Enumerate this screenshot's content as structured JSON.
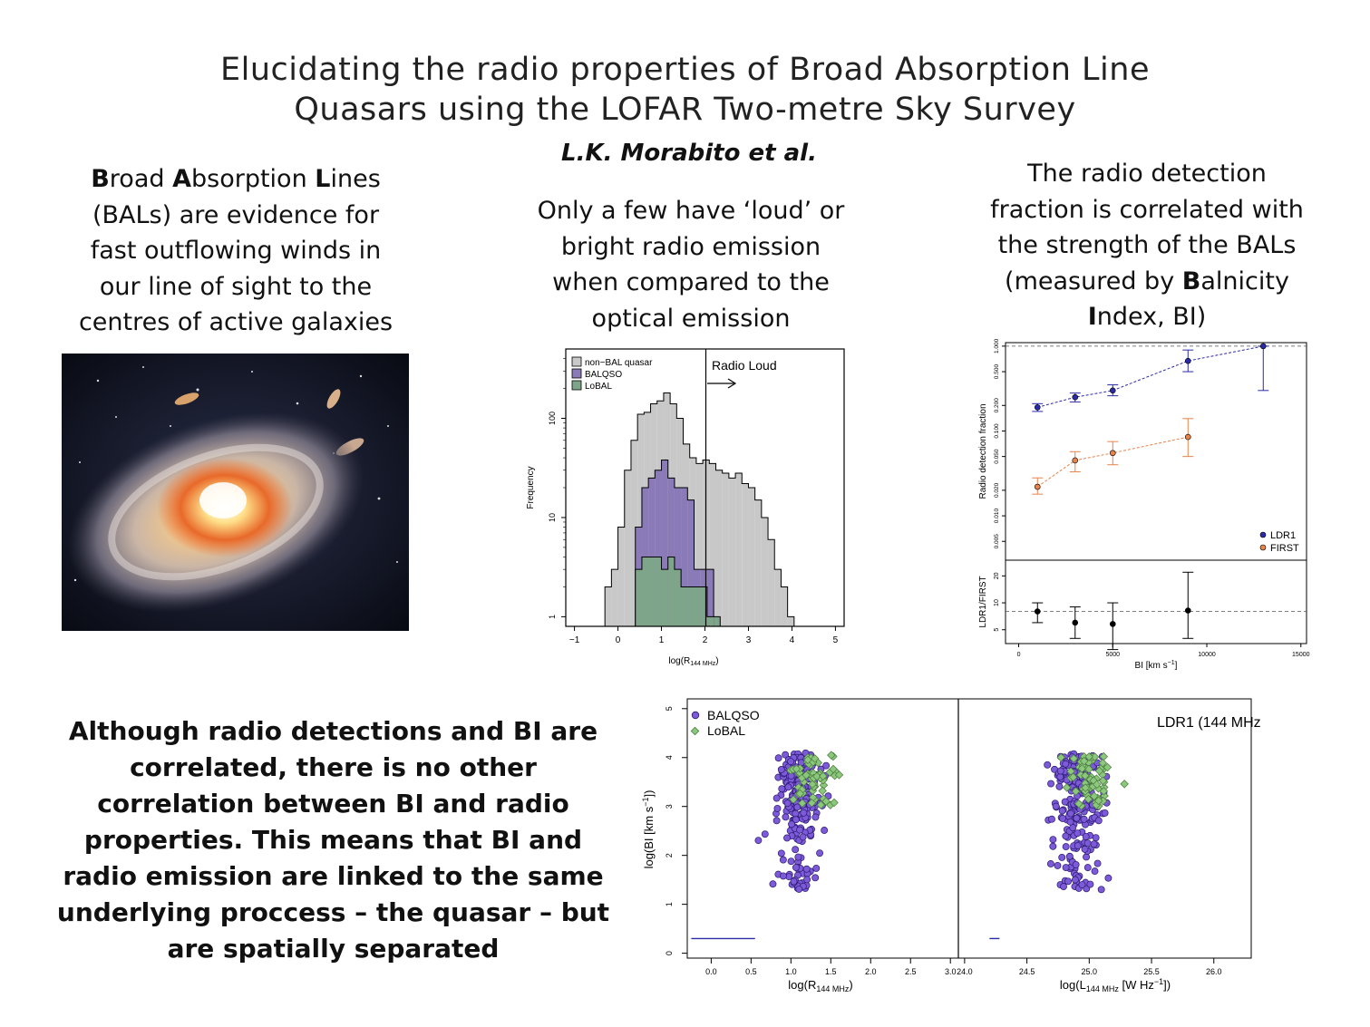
{
  "header": {
    "title_line1": "Elucidating the radio properties of Broad Absorption Line",
    "title_line2": "Quasars using the LOFAR Two-metre Sky Survey",
    "author": "L.K. Morabito et al."
  },
  "left_column": {
    "line1_b1": "B",
    "line1_t1": "road ",
    "line1_b2": "A",
    "line1_t2": "bsorption ",
    "line1_b3": "L",
    "line1_t3": "ines",
    "line2": "(BALs) are evidence for",
    "line3": "fast outflowing winds in",
    "line4": "our line of sight to the",
    "line5": "centres of active galaxies"
  },
  "middle_column": {
    "line1": "Only a few have ‘loud’ or",
    "line2": "bright radio emission",
    "line3": "when compared to the",
    "line4": "optical emission"
  },
  "right_column": {
    "line1": "The radio detection",
    "line2": "fraction is correlated with",
    "line3": "the strength of the BALs",
    "line4_t1": "(measured by ",
    "line4_b": "B",
    "line4_t2": "alnicity",
    "line5_b": "I",
    "line5_t": "ndex, BI)"
  },
  "bottom_text": {
    "line1": "Although radio detections and BI are",
    "line2": "correlated, there is no other",
    "line3": "correlation between BI and radio",
    "line4": "properties. This means that BI and",
    "line5": "radio emission are linked to the same",
    "line6": "underlying proccess – the quasar – but",
    "line7": "are spatially separated"
  },
  "colors": {
    "nonbal": "#c8c8c8",
    "balqso": "#8a7ab8",
    "lobal": "#7ea48a",
    "ldr1": "#2a2aa8",
    "first": "#e8834a",
    "scatter_bal": "#7c5ad8",
    "scatter_lobal": "#8cc87c"
  },
  "chart_data": [
    {
      "type": "histogram",
      "xlabel": "log(R144 MHz)",
      "ylabel": "Frequency",
      "yscale": "log",
      "xlim": [
        -1.2,
        5.2
      ],
      "ylim": [
        0.8,
        500
      ],
      "xticks": [
        "−1",
        "0",
        "1",
        "2",
        "3",
        "4",
        "5"
      ],
      "yticks": [
        "1",
        "10",
        "100"
      ],
      "annotation": "Radio Loud",
      "threshold_x": 2,
      "legend_position": "top-left",
      "bin_width": 0.15,
      "series": [
        {
          "name": "non−BAL quasar",
          "start": -0.3,
          "values": [
            2,
            3,
            8,
            30,
            60,
            110,
            115,
            140,
            150,
            180,
            140,
            100,
            55,
            40,
            35,
            38,
            35,
            30,
            28,
            25,
            28,
            22,
            20,
            15,
            10,
            6,
            3,
            2,
            1
          ]
        },
        {
          "name": "BALQSO",
          "start": 0.4,
          "values": [
            8,
            20,
            25,
            30,
            38,
            25,
            20,
            20,
            15,
            3,
            3,
            3
          ]
        },
        {
          "name": "LoBAL",
          "start": 0.4,
          "values": [
            3,
            4,
            4,
            4,
            3,
            4,
            3,
            2,
            2,
            2,
            2,
            1,
            1
          ]
        }
      ]
    },
    {
      "type": "scatter",
      "panels": [
        "Radio detection fraction",
        "LDR1/FIRST"
      ],
      "xlabel": "BI [km s−1]",
      "xlim": [
        -700,
        15300
      ],
      "xticks": [
        "0",
        "5000",
        "10000",
        "15000"
      ],
      "top_ylabel": "Radio detection fraction",
      "top_yscale": "log",
      "top_yticks": [
        "0.005",
        "0.010",
        "0.020",
        "0.050",
        "0.100",
        "0.200",
        "0.500",
        "1.000"
      ],
      "bottom_ylabel": "LDR1/FIRST",
      "bottom_yticks": [
        "5",
        "10",
        "20"
      ],
      "legend_position": "bottom-right",
      "series": [
        {
          "name": "LDR1",
          "x": [
            1000,
            3000,
            5000,
            9000,
            13000
          ],
          "y": [
            0.19,
            0.25,
            0.3,
            0.67,
            1.0
          ],
          "lo": [
            0.17,
            0.22,
            0.26,
            0.5,
            0.3
          ],
          "hi": [
            0.21,
            0.28,
            0.35,
            0.9,
            1.0
          ]
        },
        {
          "name": "FIRST",
          "x": [
            1000,
            3000,
            5000,
            9000
          ],
          "y": [
            0.022,
            0.045,
            0.055,
            0.085
          ],
          "lo": [
            0.018,
            0.033,
            0.04,
            0.05
          ],
          "hi": [
            0.028,
            0.057,
            0.075,
            0.14
          ]
        },
        {
          "name": "LDR1/FIRST",
          "x": [
            1000,
            3000,
            5000,
            9000
          ],
          "y": [
            8,
            6,
            5.8,
            8.2
          ],
          "lo": [
            6,
            4,
            3,
            4
          ],
          "hi": [
            10,
            9,
            10,
            22
          ]
        }
      ],
      "reference_lines": [
        1.0,
        8
      ]
    },
    {
      "type": "scatter",
      "ylabel": "log(BI [km s−1])",
      "ylim": [
        -0.1,
        5.2
      ],
      "yticks": [
        "0",
        "1",
        "2",
        "3",
        "4",
        "5"
      ],
      "legend_position": "top-left",
      "panel_label": "LDR1 (144 MHz)",
      "left_panel": {
        "xlabel": "log(R144 MHz)",
        "xlim": [
          -0.3,
          3.1
        ],
        "xticks": [
          "0.0",
          "0.5",
          "1.0",
          "1.5",
          "2.0",
          "2.5",
          "3.0"
        ]
      },
      "right_panel": {
        "xlabel": "log(L144 MHz [W Hz−1])",
        "xlim": [
          23.95,
          26.3
        ],
        "xticks": [
          "24.0",
          "24.5",
          "25.0",
          "25.5",
          "26.0"
        ]
      },
      "series": [
        {
          "name": "BALQSO",
          "note": "about 250 sources per panel, log(BI) mostly between 1.5 and 4.1"
        },
        {
          "name": "LoBAL",
          "note": "about 70 sources per panel, log(BI) mostly between 3.0 and 4.0"
        }
      ]
    }
  ]
}
